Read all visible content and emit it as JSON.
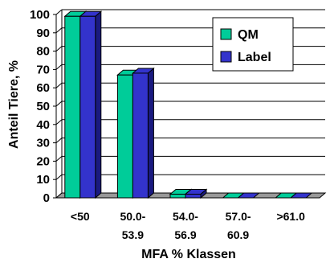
{
  "chart_data": {
    "type": "bar",
    "style": "3d-clustered-column",
    "categories": [
      [
        "<50"
      ],
      [
        "50.0-",
        "53.9"
      ],
      [
        "54.0-",
        "56.9"
      ],
      [
        "57.0-",
        "60.9"
      ],
      [
        ">61.0"
      ]
    ],
    "series": [
      {
        "name": "QM",
        "values": [
          99,
          67,
          2,
          0,
          0
        ],
        "color": "#00CC99"
      },
      {
        "name": "Label",
        "values": [
          99,
          68,
          2,
          0,
          0
        ],
        "color": "#3333CC"
      }
    ],
    "xlabel": "MFA % Klassen",
    "ylabel": "Anteil Tiere, %",
    "ylim": [
      0,
      100
    ],
    "yticks": [
      0,
      10,
      20,
      30,
      40,
      50,
      60,
      70,
      80,
      90,
      100
    ],
    "grid": true,
    "legend_position": "top-right",
    "colors": {
      "floor": "#999999",
      "side_qm": "#008060",
      "side_label": "#1a1a80"
    }
  }
}
